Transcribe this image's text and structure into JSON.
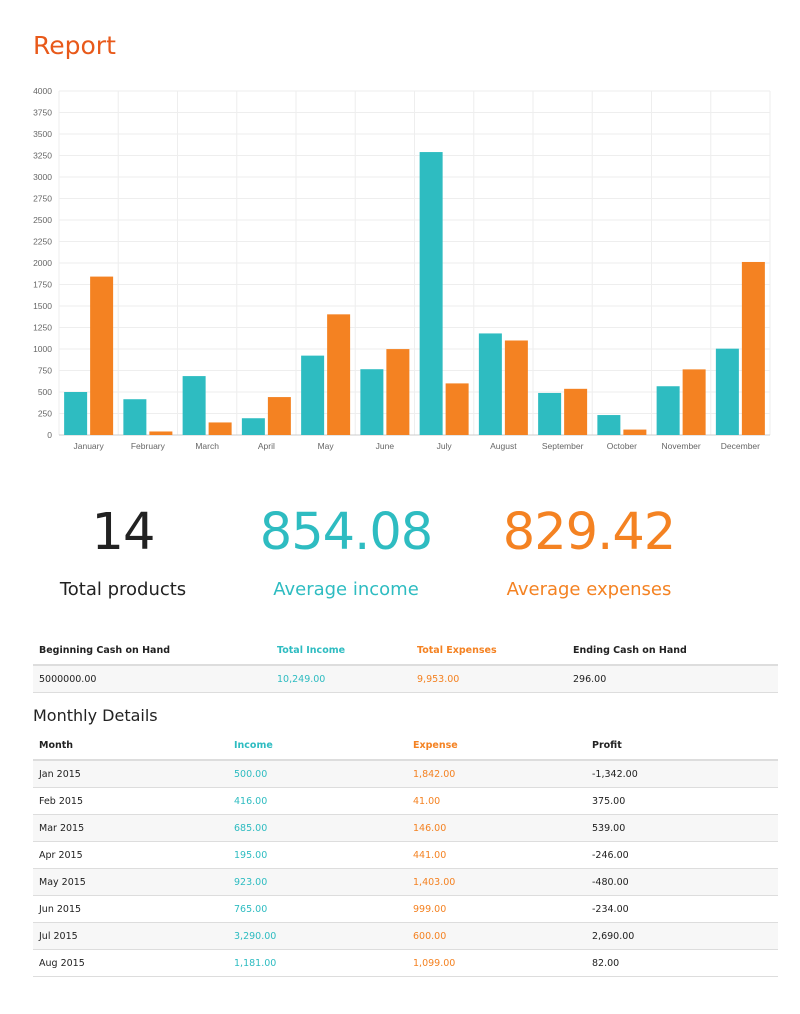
{
  "page": {
    "title": "Report"
  },
  "colors": {
    "title": "#e8591a",
    "income": "#2ebcc1",
    "expense": "#f48222",
    "grid": "#eeeeee"
  },
  "chart_data": {
    "type": "bar",
    "categories": [
      "January",
      "February",
      "March",
      "April",
      "May",
      "June",
      "July",
      "August",
      "September",
      "October",
      "November",
      "December"
    ],
    "series": [
      {
        "values": [
          500,
          416,
          685,
          195,
          923,
          765,
          3290,
          1181,
          489,
          232,
          567,
          1004
        ],
        "color": "#2ebcc1"
      },
      {
        "values": [
          1842,
          41,
          146,
          441,
          1403,
          999,
          600,
          1099,
          537,
          63,
          763,
          2012
        ],
        "color": "#f48222"
      }
    ],
    "yticks": [
      0,
      250,
      500,
      750,
      1000,
      1250,
      1500,
      1750,
      2000,
      2250,
      2500,
      2750,
      3000,
      3250,
      3500,
      3750,
      4000
    ],
    "ylim": [
      0,
      4000
    ],
    "grid": true
  },
  "stats": [
    {
      "value": "14",
      "label": "Total products"
    },
    {
      "value": "854.08",
      "label": "Average income"
    },
    {
      "value": "829.42",
      "label": "Average expenses"
    }
  ],
  "summary": {
    "headers": [
      "Beginning Cash on Hand",
      "Total Income",
      "Total Expenses",
      "Ending Cash on Hand"
    ],
    "row": [
      "5000000.00",
      "10,249.00",
      "9,953.00",
      "296.00"
    ]
  },
  "monthly": {
    "title": "Monthly Details",
    "headers": [
      "Month",
      "Income",
      "Expense",
      "Profit"
    ],
    "rows": [
      [
        "Jan 2015",
        "500.00",
        "1,842.00",
        "-1,342.00"
      ],
      [
        "Feb 2015",
        "416.00",
        "41.00",
        "375.00"
      ],
      [
        "Mar 2015",
        "685.00",
        "146.00",
        "539.00"
      ],
      [
        "Apr 2015",
        "195.00",
        "441.00",
        "-246.00"
      ],
      [
        "May 2015",
        "923.00",
        "1,403.00",
        "-480.00"
      ],
      [
        "Jun 2015",
        "765.00",
        "999.00",
        "-234.00"
      ],
      [
        "Jul 2015",
        "3,290.00",
        "600.00",
        "2,690.00"
      ],
      [
        "Aug 2015",
        "1,181.00",
        "1,099.00",
        "82.00"
      ]
    ]
  }
}
